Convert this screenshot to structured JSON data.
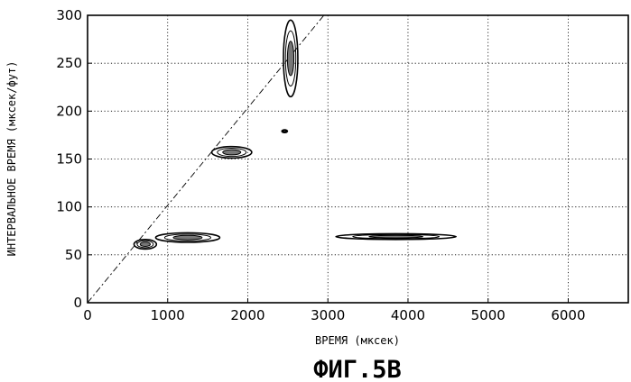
{
  "figure_caption": "ФИГ.5B",
  "chart_data": {
    "type": "contour",
    "xlabel": "ВРЕМЯ (мксек)",
    "ylabel": "ИНТЕРВАЛЬНОЕ ВРЕМЯ (мксек/фут)",
    "xlim": [
      0,
      6750
    ],
    "ylim": [
      0,
      300
    ],
    "xticks": [
      0,
      1000,
      2000,
      3000,
      4000,
      5000,
      6000
    ],
    "yticks": [
      0,
      50,
      100,
      150,
      200,
      250,
      300
    ],
    "grid": true,
    "reference_line": {
      "from": [
        0,
        0
      ],
      "to": [
        2950,
        300
      ],
      "style": "dash-dot"
    },
    "regions": [
      {
        "name": "blob-high",
        "cx": 2535,
        "cy": 255,
        "rx": 90,
        "ry": 40
      },
      {
        "name": "dot-180",
        "cx": 2460,
        "cy": 179,
        "rx": 35,
        "ry": 1.5
      },
      {
        "name": "blob-160",
        "cx": 1800,
        "cy": 157,
        "rx": 250,
        "ry": 6
      },
      {
        "name": "band-70",
        "cx": 1250,
        "cy": 68,
        "rx": 400,
        "ry": 5
      },
      {
        "name": "band-60",
        "cx": 720,
        "cy": 61,
        "rx": 140,
        "ry": 5
      },
      {
        "name": "band-70-right",
        "cx": 3850,
        "cy": 69,
        "rx": 750,
        "ry": 3
      }
    ]
  },
  "colors": {
    "axis": "#000000",
    "grid": "#000000",
    "contour": "#000000"
  }
}
